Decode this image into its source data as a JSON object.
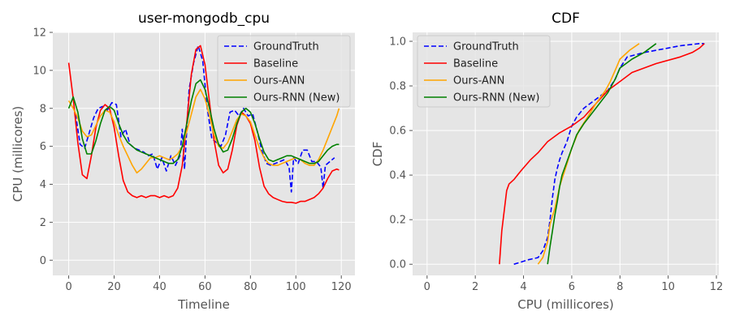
{
  "chart_data": [
    {
      "type": "line",
      "title": "user-mongodb_cpu",
      "xlabel": "Timeline",
      "ylabel": "CPU (millicores)",
      "xlim": [
        -7,
        126
      ],
      "ylim": [
        -0.8,
        12
      ],
      "xticks": [
        "0",
        "20",
        "40",
        "60",
        "80",
        "100",
        "120"
      ],
      "yticks": [
        "0",
        "2",
        "4",
        "6",
        "8",
        "10",
        "12"
      ],
      "grid": true,
      "legend_position": "top-right",
      "series": [
        {
          "name": "GroundTruth",
          "color": "#0000ff",
          "style": "dashed",
          "x": [
            3,
            5,
            7,
            9,
            11,
            13,
            15,
            17,
            19,
            21,
            23,
            25,
            27,
            29,
            31,
            33,
            35,
            37,
            39,
            41,
            43,
            45,
            47,
            49,
            50,
            51,
            53,
            55,
            57,
            59,
            61,
            63,
            65,
            67,
            69,
            71,
            73,
            75,
            77,
            79,
            81,
            83,
            85,
            87,
            89,
            91,
            93,
            95,
            97,
            98,
            99,
            101,
            103,
            105,
            107,
            109,
            111,
            112,
            113,
            115,
            117
          ],
          "y": [
            7.7,
            6.1,
            5.9,
            6.7,
            7.5,
            8.0,
            8.1,
            7.9,
            8.3,
            8.2,
            6.5,
            6.9,
            6.1,
            5.9,
            5.8,
            5.7,
            5.5,
            5.6,
            4.8,
            5.4,
            4.7,
            5.5,
            5.0,
            5.5,
            6.9,
            4.8,
            9.0,
            10.4,
            11.3,
            10.5,
            8.0,
            6.4,
            6.2,
            6.0,
            6.6,
            7.8,
            7.9,
            7.6,
            8.0,
            7.6,
            7.7,
            6.8,
            5.8,
            5.1,
            5.0,
            5.1,
            5.2,
            5.3,
            4.9,
            3.6,
            5.4,
            5.1,
            5.8,
            5.8,
            5.2,
            5.2,
            4.9,
            3.8,
            5.0,
            5.2,
            5.4
          ]
        },
        {
          "name": "Baseline",
          "color": "#ff0000",
          "style": "solid",
          "x": [
            0,
            2,
            4,
            6,
            8,
            10,
            12,
            14,
            16,
            18,
            20,
            22,
            24,
            26,
            28,
            30,
            32,
            34,
            36,
            38,
            40,
            42,
            44,
            46,
            48,
            50,
            52,
            54,
            56,
            58,
            60,
            62,
            64,
            66,
            68,
            70,
            72,
            74,
            76,
            78,
            80,
            82,
            84,
            86,
            88,
            90,
            92,
            94,
            96,
            98,
            100,
            102,
            104,
            106,
            108,
            110,
            112,
            114,
            116,
            118,
            119
          ],
          "y": [
            10.4,
            8.5,
            6.2,
            4.5,
            4.3,
            5.5,
            7.0,
            7.9,
            8.2,
            8.0,
            7.0,
            5.5,
            4.2,
            3.6,
            3.4,
            3.3,
            3.4,
            3.3,
            3.4,
            3.4,
            3.3,
            3.4,
            3.3,
            3.4,
            3.8,
            5.0,
            7.3,
            9.8,
            11.1,
            11.3,
            10.3,
            8.3,
            6.3,
            5.0,
            4.6,
            4.8,
            5.8,
            7.1,
            7.8,
            7.6,
            7.2,
            6.3,
            4.9,
            3.9,
            3.5,
            3.3,
            3.2,
            3.1,
            3.05,
            3.05,
            3.0,
            3.1,
            3.1,
            3.2,
            3.3,
            3.5,
            3.8,
            4.3,
            4.7,
            4.8,
            4.75
          ]
        },
        {
          "name": "Ours-ANN",
          "color": "#ffa500",
          "style": "solid",
          "x": [
            0,
            2,
            4,
            6,
            8,
            10,
            12,
            14,
            16,
            18,
            20,
            22,
            24,
            26,
            28,
            30,
            32,
            34,
            36,
            38,
            40,
            42,
            44,
            46,
            48,
            50,
            52,
            54,
            56,
            58,
            60,
            62,
            64,
            66,
            68,
            70,
            72,
            74,
            76,
            78,
            80,
            82,
            84,
            86,
            88,
            90,
            92,
            94,
            96,
            98,
            100,
            102,
            104,
            106,
            108,
            110,
            112,
            114,
            116,
            118,
            119
          ],
          "y": [
            8.4,
            8.0,
            7.5,
            6.8,
            6.5,
            6.6,
            7.1,
            7.6,
            7.9,
            7.8,
            7.3,
            6.6,
            6.0,
            5.5,
            5.0,
            4.6,
            4.8,
            5.1,
            5.4,
            5.4,
            5.5,
            5.4,
            5.3,
            5.4,
            5.6,
            6.0,
            6.8,
            7.7,
            8.6,
            9.0,
            8.5,
            7.6,
            6.6,
            6.0,
            5.9,
            6.2,
            6.8,
            7.4,
            7.7,
            7.6,
            7.3,
            6.6,
            5.9,
            5.4,
            5.1,
            5.0,
            5.0,
            5.1,
            5.2,
            5.3,
            5.4,
            5.3,
            5.1,
            5.0,
            5.0,
            5.3,
            5.8,
            6.4,
            7.0,
            7.6,
            8.0
          ]
        },
        {
          "name": "Ours-RNN (New)",
          "color": "#008000",
          "style": "solid",
          "x": [
            0,
            2,
            4,
            6,
            8,
            10,
            12,
            14,
            16,
            18,
            20,
            22,
            24,
            26,
            28,
            30,
            32,
            34,
            36,
            38,
            40,
            42,
            44,
            46,
            48,
            50,
            52,
            54,
            56,
            58,
            60,
            62,
            64,
            66,
            68,
            70,
            72,
            74,
            76,
            78,
            80,
            82,
            84,
            86,
            88,
            90,
            92,
            94,
            96,
            98,
            100,
            102,
            104,
            106,
            108,
            110,
            112,
            114,
            116,
            118,
            119
          ],
          "y": [
            8.0,
            8.6,
            7.8,
            6.4,
            5.6,
            5.6,
            6.3,
            7.2,
            7.9,
            8.1,
            7.9,
            7.2,
            6.6,
            6.2,
            6.0,
            5.8,
            5.7,
            5.6,
            5.5,
            5.4,
            5.3,
            5.2,
            5.1,
            5.1,
            5.3,
            6.0,
            7.2,
            8.4,
            9.3,
            9.5,
            9.0,
            8.0,
            6.9,
            6.1,
            5.7,
            5.8,
            6.4,
            7.2,
            7.8,
            8.0,
            7.8,
            7.2,
            6.4,
            5.7,
            5.3,
            5.2,
            5.3,
            5.4,
            5.5,
            5.5,
            5.4,
            5.3,
            5.2,
            5.1,
            5.1,
            5.2,
            5.5,
            5.8,
            6.0,
            6.1,
            6.1
          ]
        }
      ]
    },
    {
      "type": "line",
      "title": "CDF",
      "xlabel": "CPU (millicores)",
      "ylabel": "CDF",
      "xlim": [
        -0.6,
        12.1
      ],
      "ylim": [
        -0.05,
        1.04
      ],
      "xticks": [
        "0",
        "2",
        "4",
        "6",
        "8",
        "10",
        "12"
      ],
      "yticks": [
        "0.0",
        "0.2",
        "0.4",
        "0.6",
        "0.8",
        "1.0"
      ],
      "grid": true,
      "legend_position": "top-left",
      "series": [
        {
          "name": "GroundTruth",
          "color": "#0000ff",
          "style": "dashed",
          "x": [
            3.6,
            3.9,
            4.2,
            4.6,
            4.8,
            5.0,
            5.1,
            5.2,
            5.3,
            5.4,
            5.5,
            5.6,
            5.8,
            6.0,
            6.2,
            6.5,
            7.0,
            7.5,
            7.8,
            8.0,
            8.3,
            9.0,
            10.0,
            10.5,
            11.3,
            11.5
          ],
          "y": [
            0.0,
            0.01,
            0.02,
            0.03,
            0.06,
            0.12,
            0.2,
            0.3,
            0.38,
            0.43,
            0.47,
            0.5,
            0.55,
            0.62,
            0.66,
            0.7,
            0.74,
            0.78,
            0.83,
            0.88,
            0.93,
            0.95,
            0.97,
            0.98,
            0.99,
            0.99
          ]
        },
        {
          "name": "Baseline",
          "color": "#ff0000",
          "style": "solid",
          "x": [
            3.0,
            3.1,
            3.3,
            3.4,
            3.6,
            3.9,
            4.3,
            4.6,
            5.0,
            5.5,
            6.0,
            6.5,
            7.0,
            7.5,
            8.0,
            8.5,
            9.5,
            10.5,
            11.0,
            11.3,
            11.5
          ],
          "y": [
            0.0,
            0.15,
            0.33,
            0.36,
            0.38,
            0.42,
            0.47,
            0.5,
            0.55,
            0.59,
            0.62,
            0.66,
            0.72,
            0.78,
            0.82,
            0.86,
            0.9,
            0.93,
            0.95,
            0.97,
            0.99
          ]
        },
        {
          "name": "Ours-ANN",
          "color": "#ffa500",
          "style": "solid",
          "x": [
            4.6,
            4.8,
            5.0,
            5.1,
            5.3,
            5.5,
            5.8,
            6.0,
            6.3,
            6.6,
            7.0,
            7.4,
            7.6,
            7.8,
            8.0,
            8.4,
            8.8
          ],
          "y": [
            0.0,
            0.03,
            0.1,
            0.18,
            0.25,
            0.35,
            0.45,
            0.52,
            0.6,
            0.65,
            0.72,
            0.78,
            0.82,
            0.87,
            0.92,
            0.96,
            0.99
          ]
        },
        {
          "name": "Ours-RNN (New)",
          "color": "#008000",
          "style": "solid",
          "x": [
            5.0,
            5.1,
            5.2,
            5.3,
            5.4,
            5.5,
            5.6,
            5.8,
            6.0,
            6.2,
            6.5,
            7.0,
            7.5,
            7.8,
            8.0,
            8.5,
            9.0,
            9.5
          ],
          "y": [
            0.0,
            0.08,
            0.15,
            0.22,
            0.28,
            0.35,
            0.4,
            0.46,
            0.52,
            0.58,
            0.63,
            0.7,
            0.77,
            0.83,
            0.88,
            0.92,
            0.95,
            0.99
          ]
        }
      ]
    }
  ]
}
